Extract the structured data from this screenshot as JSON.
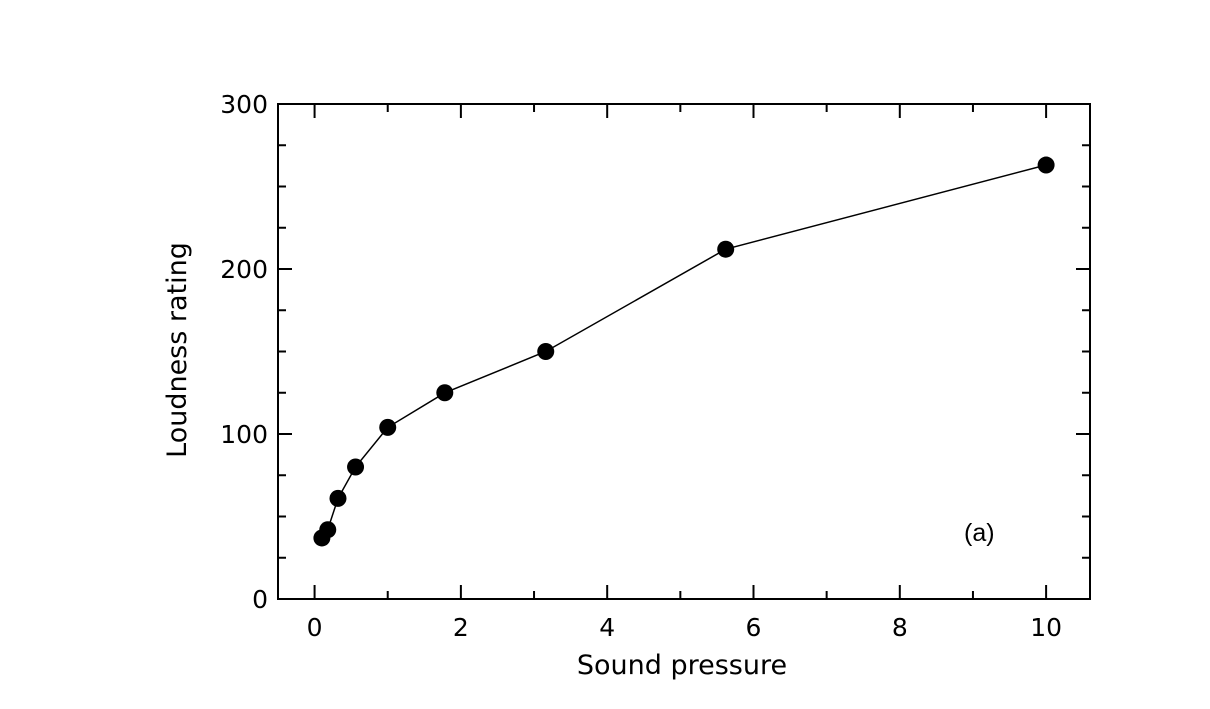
{
  "chart_data": {
    "type": "line",
    "title": "",
    "xlabel": "Sound pressure",
    "ylabel": "Loudness rating",
    "annotation": "(a)",
    "xlim": [
      -0.5,
      10.6
    ],
    "ylim": [
      0,
      300
    ],
    "x_major_ticks": [
      0,
      2,
      4,
      6,
      8,
      10
    ],
    "x_minor_ticks": [
      1,
      3,
      5,
      7,
      9
    ],
    "y_major_ticks": [
      0,
      100,
      200,
      300
    ],
    "y_minor_ticks": [
      25,
      50,
      75,
      125,
      150,
      175,
      225,
      250,
      275
    ],
    "x_tick_labels": [
      "0",
      "2",
      "4",
      "6",
      "8",
      "10"
    ],
    "y_tick_labels": [
      "0",
      "100",
      "200",
      "300"
    ],
    "grid": false,
    "legend": "none",
    "marker": "filled-circle",
    "colors": {
      "line": "#000000",
      "marker": "#000000"
    },
    "series": [
      {
        "x": [
          0.1,
          0.18,
          0.32,
          0.56,
          1.0,
          1.78,
          3.16,
          5.62,
          10.0
        ],
        "y": [
          37,
          42,
          61,
          80,
          104,
          125,
          150,
          212,
          263
        ]
      }
    ]
  }
}
